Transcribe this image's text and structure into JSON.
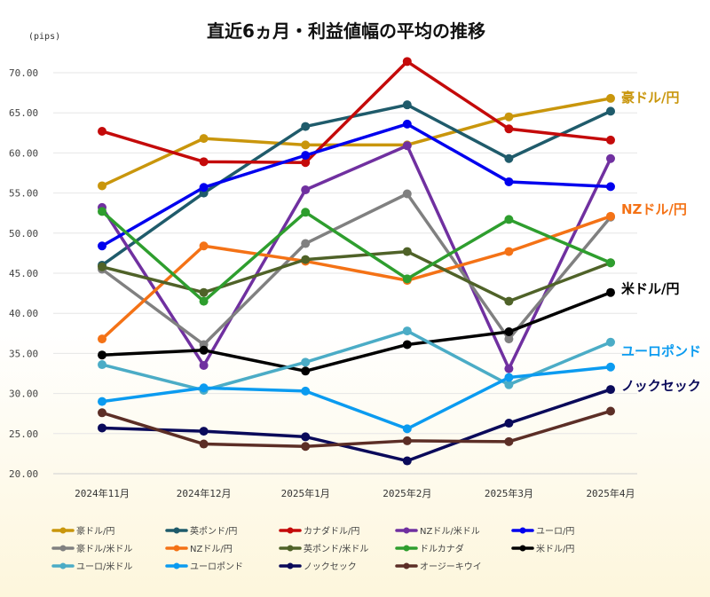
{
  "chart_data": {
    "type": "line",
    "title": "直近6ヵ月・利益値幅の平均の推移",
    "unit_label": "(pips)",
    "categories": [
      "2024年11月",
      "2024年12月",
      "2025年1月",
      "2025年2月",
      "2025年3月",
      "2025年4月"
    ],
    "ylim": [
      20,
      70
    ],
    "yticks": [
      "20.00",
      "25.00",
      "30.00",
      "35.00",
      "40.00",
      "45.00",
      "50.00",
      "55.00",
      "60.00",
      "65.00",
      "70.00"
    ],
    "grid": true,
    "legend_position": "bottom",
    "series": [
      {
        "name": "豪ドル/円",
        "color": "#c9960c",
        "values": [
          55.9,
          61.8,
          61.0,
          61.0,
          64.5,
          66.8
        ]
      },
      {
        "name": "英ポンド/円",
        "color": "#1f5b6b",
        "values": [
          46.0,
          55.0,
          63.3,
          66.0,
          59.3,
          65.2
        ]
      },
      {
        "name": "カナダドル/円",
        "color": "#c40a0a",
        "values": [
          62.7,
          58.9,
          58.8,
          71.4,
          63.0,
          61.6
        ]
      },
      {
        "name": "NZドル/米ドル",
        "color": "#7030a0",
        "values": [
          53.2,
          33.5,
          55.4,
          60.9,
          33.1,
          59.3
        ]
      },
      {
        "name": "ユーロ/円",
        "color": "#0000ee",
        "values": [
          48.4,
          55.7,
          59.7,
          63.6,
          56.4,
          55.8
        ]
      },
      {
        "name": "豪ドル/米ドル",
        "color": "#808080",
        "values": [
          45.5,
          36.1,
          48.7,
          54.9,
          36.8,
          52.0
        ]
      },
      {
        "name": "NZドル/円",
        "color": "#f47216",
        "values": [
          36.8,
          48.4,
          46.5,
          44.1,
          47.7,
          52.1
        ]
      },
      {
        "name": "英ポンド/米ドル",
        "color": "#4f6228",
        "values": [
          45.8,
          42.6,
          46.7,
          47.7,
          41.5,
          46.3
        ]
      },
      {
        "name": "ドルカナダ",
        "color": "#2e9e2e",
        "values": [
          52.7,
          41.5,
          52.6,
          44.3,
          51.7,
          46.3
        ]
      },
      {
        "name": "米ドル/円",
        "color": "#000000",
        "values": [
          34.8,
          35.4,
          32.8,
          36.1,
          37.7,
          42.6
        ]
      },
      {
        "name": "ユーロ/米ドル",
        "color": "#4bacc6",
        "values": [
          33.6,
          30.4,
          33.9,
          37.8,
          31.1,
          36.4
        ]
      },
      {
        "name": "ユーロポンド",
        "color": "#0b9bf0",
        "values": [
          29.0,
          30.7,
          30.3,
          25.6,
          32.0,
          33.3
        ]
      },
      {
        "name": "ノックセック",
        "color": "#0a0a5a",
        "values": [
          25.7,
          25.3,
          24.6,
          21.6,
          26.3,
          30.5
        ]
      },
      {
        "name": "オージーキウイ",
        "color": "#5c2e26",
        "values": [
          27.6,
          23.7,
          23.4,
          24.1,
          24.0,
          27.8
        ]
      }
    ],
    "end_labels": [
      {
        "text": "豪ドル/円",
        "color": "#c9960c"
      },
      {
        "text": "NZドル/円",
        "color": "#f47216"
      },
      {
        "text": "米ドル/円",
        "color": "#000000"
      },
      {
        "text": "ユーロポンド",
        "color": "#0b9bf0"
      },
      {
        "text": "ノックセック",
        "color": "#0a0a5a"
      }
    ]
  }
}
